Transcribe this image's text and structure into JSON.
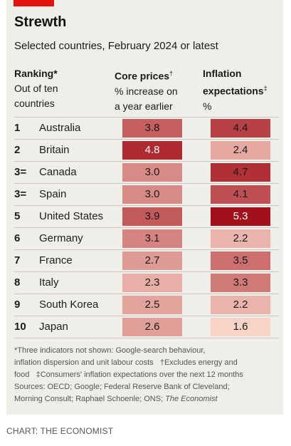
{
  "header": {
    "title": "Strewth",
    "subtitle": "Selected countries, February 2024 or latest"
  },
  "columns": {
    "ranking_title": "Ranking*",
    "ranking_sub_1": "Out of ten",
    "ranking_sub_2": "countries",
    "core_title": "Core prices",
    "core_mark": "†",
    "core_sub_1": "% increase on",
    "core_sub_2": "a year earlier",
    "infl_title_1": "Inflation",
    "infl_title_2": "expectations",
    "infl_mark": "‡",
    "infl_sub": "%"
  },
  "chart_data": {
    "type": "table",
    "title": "Strewth",
    "subtitle": "Selected countries, February 2024 or latest",
    "columns": [
      "Ranking*",
      "Core prices† % increase on a year earlier",
      "Inflation expectations‡ %"
    ],
    "rows": [
      {
        "rank": "1",
        "country": "Australia",
        "core": 3.8,
        "inflation": 4.4
      },
      {
        "rank": "2",
        "country": "Britain",
        "core": 4.8,
        "inflation": 2.4
      },
      {
        "rank": "3=",
        "country": "Canada",
        "core": 3.0,
        "inflation": 4.7
      },
      {
        "rank": "3=",
        "country": "Spain",
        "core": 3.0,
        "inflation": 4.1
      },
      {
        "rank": "5",
        "country": "United States",
        "core": 3.9,
        "inflation": 5.3
      },
      {
        "rank": "6",
        "country": "Germany",
        "core": 3.1,
        "inflation": 2.2
      },
      {
        "rank": "7",
        "country": "France",
        "core": 2.7,
        "inflation": 3.5
      },
      {
        "rank": "8",
        "country": "Italy",
        "core": 2.3,
        "inflation": 3.3
      },
      {
        "rank": "9",
        "country": "South Korea",
        "core": 2.5,
        "inflation": 2.2
      },
      {
        "rank": "10",
        "country": "Japan",
        "core": 2.6,
        "inflation": 1.6
      }
    ],
    "color_scale": {
      "low": "#f9d9cc",
      "high": "#a3101a"
    }
  },
  "footnotes": {
    "line1": "*Three indicators not shown: Google-search behaviour,",
    "line2": "inflation dispersion and unit labour costs   †Excludes energy and",
    "line3": "food   ‡Consumers' inflation expectations over the next 12 months",
    "line4": "Sources: OECD; Google; Federal Reserve Bank of Cleveland;",
    "line5": "Morning Consult; Raphael Schoenle; ONS; ",
    "line5_italic": "The Economist"
  },
  "credit": "CHART: THE ECONOMIST"
}
